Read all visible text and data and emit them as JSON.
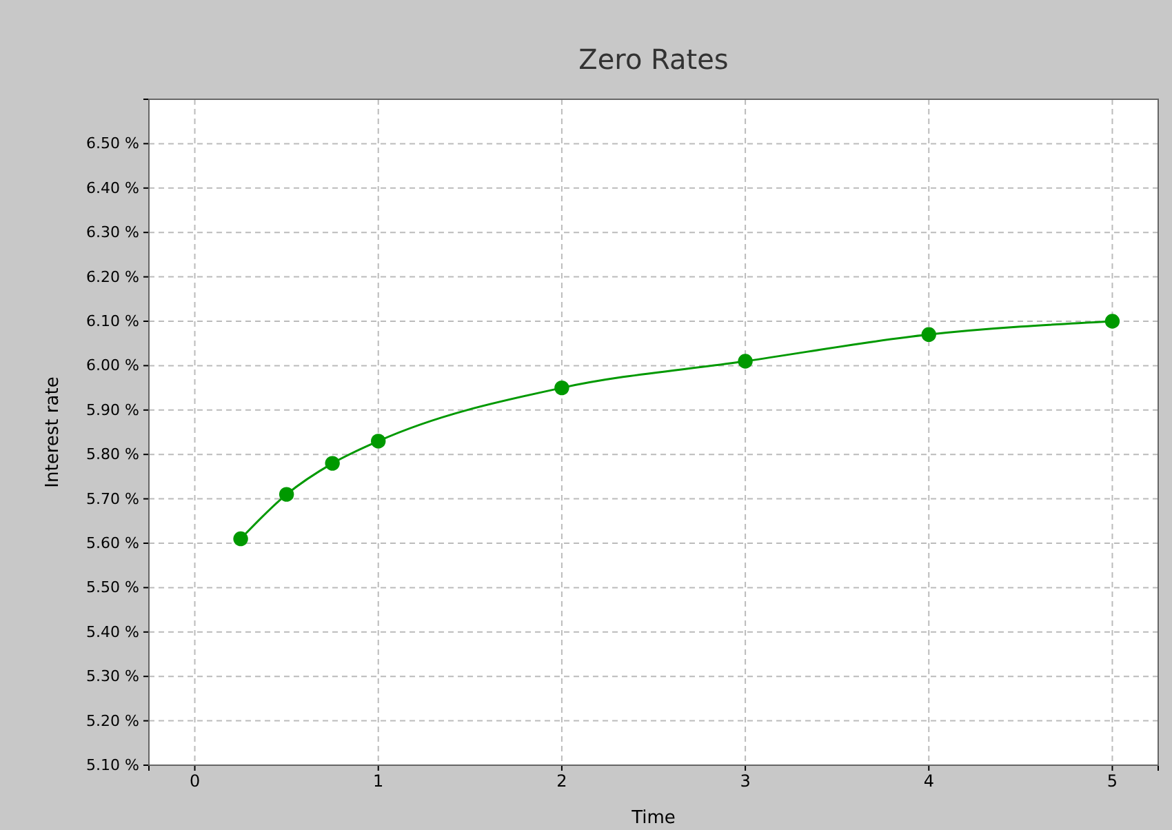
{
  "chart_data": {
    "type": "line",
    "title": "Zero Rates",
    "xlabel": "Time",
    "ylabel": "Interest rate",
    "x": [
      0.25,
      0.5,
      0.75,
      1,
      2,
      3,
      4,
      5
    ],
    "series": [
      {
        "color": "#009900",
        "values": [
          5.61,
          5.71,
          5.78,
          5.83,
          5.95,
          6.01,
          6.07,
          6.1
        ]
      }
    ],
    "xlim": [
      -0.25,
      5.25
    ],
    "xticks": [
      0,
      1,
      2,
      3,
      4,
      5
    ],
    "ylim": [
      5.1,
      6.6
    ],
    "yticks": [
      {
        "value": 5.1,
        "label": "5.10 %"
      },
      {
        "value": 5.2,
        "label": "5.20 %"
      },
      {
        "value": 5.3,
        "label": "5.30 %"
      },
      {
        "value": 5.4,
        "label": "5.40 %"
      },
      {
        "value": 5.5,
        "label": "5.50 %"
      },
      {
        "value": 5.6,
        "label": "5.60 %"
      },
      {
        "value": 5.7,
        "label": "5.70 %"
      },
      {
        "value": 5.8,
        "label": "5.80 %"
      },
      {
        "value": 5.9,
        "label": "5.90 %"
      },
      {
        "value": 6.0,
        "label": "6.00 %"
      },
      {
        "value": 6.1,
        "label": "6.10 %"
      },
      {
        "value": 6.2,
        "label": "6.20 %"
      },
      {
        "value": 6.3,
        "label": "6.30 %"
      },
      {
        "value": 6.4,
        "label": "6.40 %"
      },
      {
        "value": 6.5,
        "label": "6.50 %"
      }
    ],
    "grid": true,
    "marker": "circle",
    "line_style": "solid",
    "legend": false
  }
}
